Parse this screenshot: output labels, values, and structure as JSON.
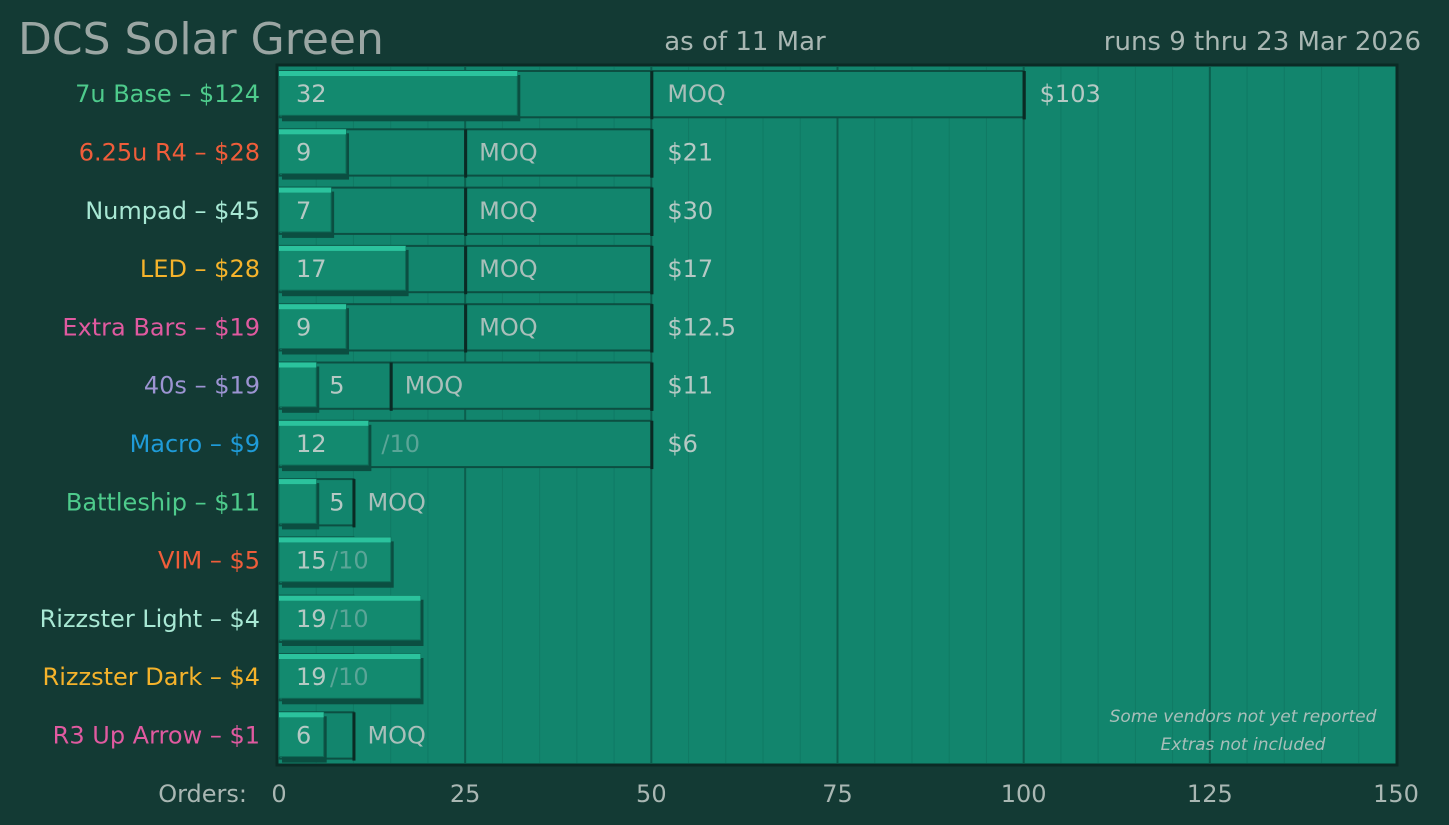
{
  "header": {
    "title": "DCS Solar Green",
    "as_of": "as of 11 Mar",
    "runs": "runs 9 thru 23 Mar 2026"
  },
  "notes": [
    "Some vendors not yet reported",
    "Extras not included"
  ],
  "axis_prefix": "Orders:",
  "moq_label": "MOQ",
  "chart_data": {
    "type": "bar",
    "orientation": "horizontal",
    "x_range": [
      0,
      150
    ],
    "x_ticks": [
      0,
      25,
      50,
      75,
      100,
      125,
      150
    ],
    "x_tick_labels": [
      "0",
      "25",
      "50",
      "75",
      "100",
      "125",
      "150"
    ],
    "grid": true,
    "categories": [
      "7u Base – $124",
      "6.25u R4 – $28",
      "Numpad – $45",
      "LED – $28",
      "Extra Bars – $19",
      "40s – $19",
      "Macro – $9",
      "Battleship – $11",
      "VIM – $5",
      "Rizzster Light – $4",
      "Rizzster Dark – $4",
      "R3 Up Arrow – $1"
    ],
    "label_colors": [
      "#4ecb8c",
      "#ef5d3a",
      "#a8e8d4",
      "#f5b32b",
      "#e05aa0",
      "#9c94d2",
      "#1f9bd8",
      "#4ecb8c",
      "#ef5d3a",
      "#a8e8d4",
      "#f5b32b",
      "#e05aa0"
    ],
    "orders": [
      32,
      9,
      7,
      17,
      9,
      5,
      12,
      5,
      15,
      19,
      19,
      6
    ],
    "order_labels": [
      "32",
      "9",
      "7",
      "17",
      "9",
      "5",
      "12",
      "5",
      "15",
      "19",
      "19",
      "6"
    ],
    "moq": [
      null,
      25,
      25,
      25,
      25,
      15,
      10,
      10,
      10,
      10,
      10,
      10
    ],
    "moq_text": [
      "",
      "",
      "",
      "",
      "",
      "",
      "/10",
      "",
      "/10",
      "/10",
      "/10",
      ""
    ],
    "moq_badge": [
      false,
      true,
      true,
      true,
      true,
      true,
      false,
      true,
      false,
      false,
      false,
      true
    ],
    "price_break_start": [
      50,
      50,
      50,
      50,
      50,
      50,
      null,
      null,
      null,
      null,
      null,
      null
    ],
    "price_break_end": [
      100,
      null,
      null,
      null,
      null,
      null,
      null,
      null,
      null,
      null,
      null,
      null
    ],
    "price_break_badge": [
      true,
      false,
      false,
      false,
      false,
      false,
      false,
      false,
      false,
      false,
      false,
      false
    ],
    "price_break_final": [
      100,
      50,
      50,
      50,
      50,
      50,
      50,
      null,
      null,
      null,
      null,
      null
    ],
    "price_labels": [
      "$103",
      "$21",
      "$30",
      "$17",
      "$12.5",
      "$11",
      "$6",
      "",
      "",
      "",
      "",
      ""
    ]
  },
  "colors": {
    "background": "#133a34",
    "plot": "#12856d",
    "bar_top": "#2bc39d",
    "bar_face": "#138a6f",
    "bar_shadow": "#0b4e41",
    "grid": "#0f6f5b",
    "frame": "#0b2a25"
  }
}
